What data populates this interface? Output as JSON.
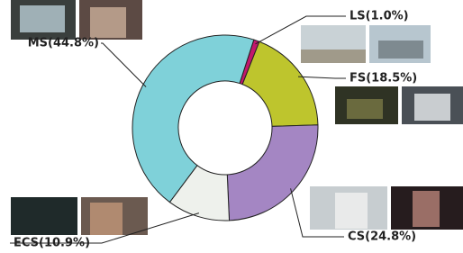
{
  "chart_data": {
    "type": "pie",
    "value_labels": [
      "LS(1.0%)",
      "FS(18.5%)",
      "CS(24.8%)",
      "ECS(10.9%)",
      "MS(44.8%)"
    ],
    "values": [
      1.0,
      18.5,
      24.8,
      10.9,
      44.8
    ],
    "colors": [
      "#c2176c",
      "#bec52d",
      "#a486c3",
      "#eef1ec",
      "#7fd1d9"
    ]
  }
}
